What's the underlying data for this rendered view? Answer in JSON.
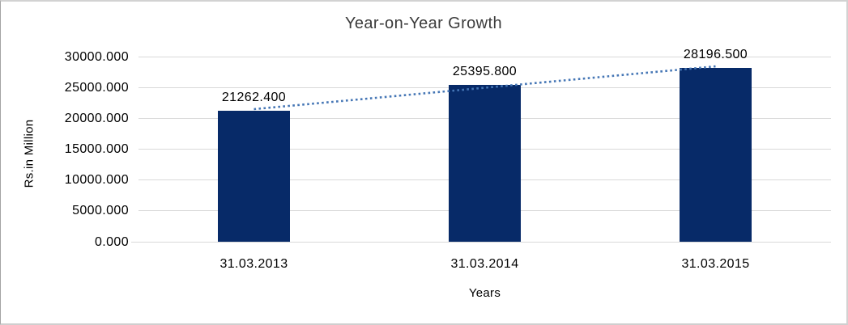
{
  "frame": {
    "background": "#ffffff",
    "border_color": "#d2d2d2"
  },
  "chart_data": {
    "type": "bar",
    "title": "Year-on-Year Growth",
    "xlabel": "Years",
    "ylabel": "Rs.in Million",
    "categories": [
      "31.03.2013",
      "31.03.2014",
      "31.03.2015"
    ],
    "values": [
      21262.4,
      25395.8,
      28196.5
    ],
    "data_labels": [
      "21262.400",
      "25395.800",
      "28196.500"
    ],
    "ytick_labels": [
      "0.000",
      "5000.000",
      "10000.000",
      "15000.000",
      "20000.000",
      "25000.000",
      "30000.000"
    ],
    "ytick_values": [
      0,
      5000,
      10000,
      15000,
      20000,
      25000,
      30000
    ],
    "ylim": [
      0,
      30000
    ],
    "grid": "horizontal",
    "legend": "none",
    "bar_color": "#072a68",
    "gridline_color": "#d9d9d9",
    "trendline": {
      "fit": "linear",
      "style": "dotted",
      "color": "#4576b5"
    }
  }
}
